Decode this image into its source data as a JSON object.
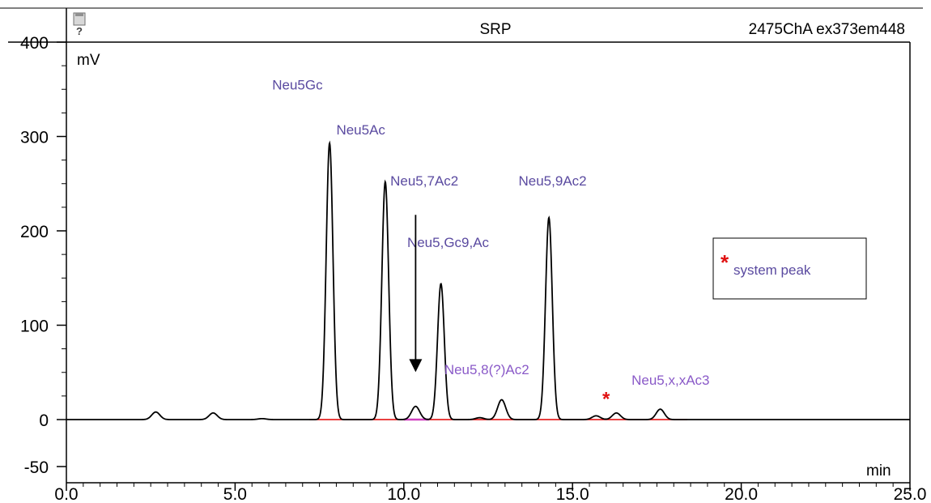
{
  "header": {
    "title": "SRP",
    "channel": "2475ChA ex373em448",
    "icon": "help-icon"
  },
  "colors": {
    "trace": "#000000",
    "baseline": "#e00000",
    "label": "#5a4aa0",
    "label_alt": "#8a5ac8",
    "marker": "#e01010",
    "integration": "#d040c0"
  },
  "chart_data": {
    "type": "line",
    "title": "SRP",
    "xlabel": "min",
    "ylabel": "mV",
    "xlim": [
      0.0,
      25.0
    ],
    "ylim": [
      -50,
      400
    ],
    "x_ticks": [
      "0.0",
      "5.0",
      "10.0",
      "15.0",
      "20.0",
      "25.0"
    ],
    "y_ticks": [
      "-50",
      "0",
      "100",
      "200",
      "300",
      "400"
    ],
    "grid": false,
    "peaks": [
      {
        "rt": 2.65,
        "height": 8
      },
      {
        "rt": 4.35,
        "height": 7
      },
      {
        "rt": 5.8,
        "height": 1
      },
      {
        "rt": 7.8,
        "height": 293
      },
      {
        "rt": 9.45,
        "height": 252
      },
      {
        "rt": 10.35,
        "height": 14
      },
      {
        "rt": 11.1,
        "height": 144
      },
      {
        "rt": 12.25,
        "height": 2
      },
      {
        "rt": 12.9,
        "height": 21
      },
      {
        "rt": 14.3,
        "height": 214
      },
      {
        "rt": 15.7,
        "height": 4
      },
      {
        "rt": 16.3,
        "height": 7
      },
      {
        "rt": 17.6,
        "height": 11
      }
    ],
    "annotations": [
      {
        "text": "Neu5Gc",
        "x": 6.1,
        "y": 350,
        "color": "label"
      },
      {
        "text": "Neu5Ac",
        "x": 8.0,
        "y": 302,
        "color": "label"
      },
      {
        "text": "Neu5,7Ac2",
        "x": 9.6,
        "y": 248,
        "color": "label"
      },
      {
        "text": "Neu5,9Ac2",
        "x": 13.4,
        "y": 248,
        "color": "label"
      },
      {
        "text": "Neu5,Gc9,Ac",
        "x": 10.1,
        "y": 183,
        "color": "label"
      },
      {
        "text": "Neu5,8(?)Ac2",
        "x": 11.2,
        "y": 48,
        "color": "label_alt"
      },
      {
        "text": "Neu5,x,xAc3",
        "x": 16.75,
        "y": 37,
        "color": "label_alt"
      }
    ],
    "arrow": {
      "x": 10.35,
      "y_from": 217,
      "y_to": 52
    },
    "system_peak_marker": {
      "x": 16.05,
      "y": 27
    },
    "legend": {
      "symbol": "*",
      "text": "system peak",
      "position": "right"
    }
  }
}
